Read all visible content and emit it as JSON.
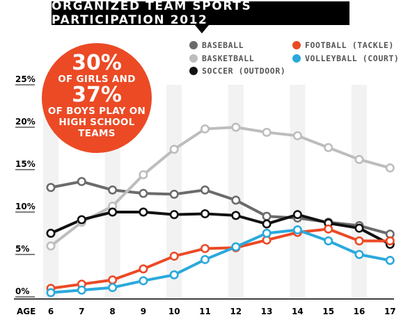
{
  "header": {
    "title": "ORGANIZED TEAM SPORTS PARTICIPATION 2012"
  },
  "callout": {
    "line1": "30%",
    "line2": "OF GIRLS AND",
    "line3": "37%",
    "line4": "OF BOYS PLAY ON",
    "line5": "HIGH SCHOOL",
    "line6": "TEAMS",
    "color": "#eb4a25"
  },
  "chart_data": {
    "type": "line",
    "title": "ORGANIZED TEAM SPORTS PARTICIPATION 2012",
    "xlabel": "AGE",
    "ylabel": "",
    "x": [
      6,
      7,
      8,
      9,
      10,
      11,
      12,
      13,
      14,
      15,
      16,
      17
    ],
    "ylim": [
      0,
      25
    ],
    "yticks": [
      "0%",
      "5%",
      "10%",
      "15%",
      "20%",
      "25%"
    ],
    "ytick_values": [
      0,
      5,
      10,
      15,
      20,
      25
    ],
    "grid": "vertical-bands",
    "legend_placement": "top-right",
    "series": [
      {
        "name": "BASEBALL",
        "color": "#6b6b6b",
        "values": [
          12.9,
          13.6,
          12.6,
          12.2,
          12.1,
          12.6,
          11.4,
          9.5,
          9.3,
          8.8,
          8.4,
          7.4
        ]
      },
      {
        "name": "BASKETBALL",
        "color": "#bdbdbd",
        "values": [
          6.0,
          8.8,
          10.7,
          14.4,
          17.4,
          19.8,
          20.0,
          19.4,
          19.0,
          17.6,
          16.2,
          15.2
        ]
      },
      {
        "name": "SOCCER (OUTDOOR)",
        "color": "#111111",
        "values": [
          7.5,
          9.1,
          10.0,
          10.0,
          9.7,
          9.8,
          9.6,
          8.6,
          9.7,
          8.7,
          8.1,
          6.2
        ]
      },
      {
        "name": "FOOTBALL (TACKLE)",
        "color": "#eb4a25",
        "values": [
          1.0,
          1.5,
          2.0,
          3.3,
          4.8,
          5.7,
          5.8,
          6.7,
          7.6,
          8.0,
          6.6,
          6.6
        ]
      },
      {
        "name": "VOLLEYBALL (COURT)",
        "color": "#2aa9dc",
        "values": [
          0.5,
          0.8,
          1.1,
          1.9,
          2.6,
          4.4,
          5.9,
          7.5,
          7.9,
          6.6,
          5.0,
          4.3
        ]
      }
    ]
  }
}
